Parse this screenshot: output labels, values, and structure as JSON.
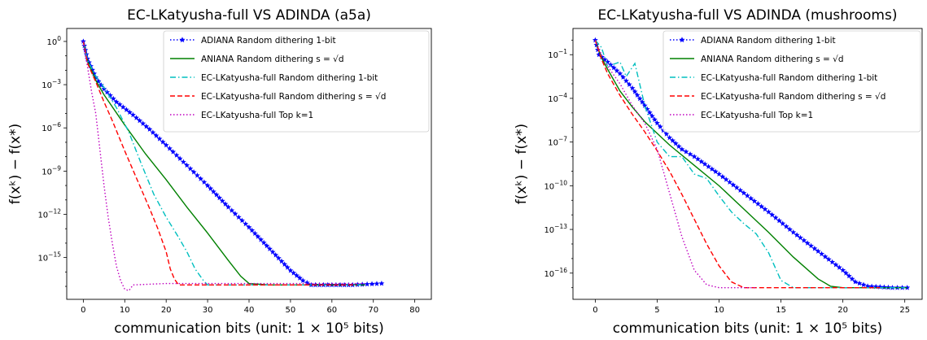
{
  "chart_data": [
    {
      "type": "line",
      "title": "EC-LKatyusha-full VS ADINDA (a5a)",
      "xlabel": "communication bits (unit: 1 × 10⁵ bits)",
      "ylabel": "f(xᵏ) − f(x*)",
      "xlim": [
        -4,
        84
      ],
      "ylim_log10": [
        -17.9,
        0.9
      ],
      "yscale": "log",
      "xticks": [
        0,
        10,
        20,
        30,
        40,
        50,
        60,
        70,
        80
      ],
      "xtick_labels": [
        "0",
        "10",
        "20",
        "30",
        "40",
        "50",
        "60",
        "70",
        "80"
      ],
      "yticks_log10": [
        0,
        -3,
        -6,
        -9,
        -12,
        -15
      ],
      "ytick_labels": [
        "10⁰",
        "10⁻³",
        "10⁻⁶",
        "10⁻⁹",
        "10⁻¹²",
        "10⁻¹⁵"
      ],
      "legend_position": "top-right",
      "series": [
        {
          "name": "ADIANA Random dithering 1-bit",
          "color": "#0000ff",
          "style": "dotted-star",
          "points": [
            [
              0,
              0
            ],
            [
              1,
              -1.2
            ],
            [
              3,
              -2.5
            ],
            [
              5,
              -3.3
            ],
            [
              8,
              -4.2
            ],
            [
              12,
              -5.1
            ],
            [
              16,
              -6.1
            ],
            [
              20,
              -7.2
            ],
            [
              25,
              -8.6
            ],
            [
              30,
              -10.0
            ],
            [
              35,
              -11.5
            ],
            [
              40,
              -12.9
            ],
            [
              45,
              -14.4
            ],
            [
              50,
              -15.9
            ],
            [
              53,
              -16.6
            ],
            [
              55,
              -16.9
            ],
            [
              60,
              -16.9
            ],
            [
              65,
              -16.9
            ],
            [
              72,
              -16.8
            ]
          ]
        },
        {
          "name": "ANIANA Random dithering s = √d",
          "color": "#008000",
          "style": "solid",
          "points": [
            [
              0,
              0
            ],
            [
              1,
              -1.3
            ],
            [
              3,
              -2.7
            ],
            [
              5,
              -3.7
            ],
            [
              10,
              -5.8
            ],
            [
              15,
              -7.8
            ],
            [
              20,
              -9.6
            ],
            [
              25,
              -11.5
            ],
            [
              30,
              -13.3
            ],
            [
              35,
              -15.2
            ],
            [
              38,
              -16.3
            ],
            [
              40,
              -16.8
            ],
            [
              45,
              -16.9
            ],
            [
              55,
              -16.9
            ],
            [
              64,
              -16.9
            ],
            [
              68,
              -16.9
            ]
          ]
        },
        {
          "name": "EC-LKatyusha-full Random dithering 1-bit",
          "color": "#00bfbf",
          "style": "dashdot",
          "points": [
            [
              0,
              0
            ],
            [
              1,
              -1.3
            ],
            [
              3,
              -2.4
            ],
            [
              5,
              -3.2
            ],
            [
              8,
              -4.6
            ],
            [
              11,
              -6.3
            ],
            [
              14,
              -8.5
            ],
            [
              17,
              -10.6
            ],
            [
              20,
              -12.2
            ],
            [
              23,
              -13.6
            ],
            [
              25,
              -14.6
            ],
            [
              27,
              -15.8
            ],
            [
              29,
              -16.6
            ],
            [
              30,
              -16.9
            ],
            [
              40,
              -16.9
            ],
            [
              50,
              -16.9
            ],
            [
              60,
              -16.9
            ],
            [
              67,
              -16.9
            ]
          ]
        },
        {
          "name": "EC-LKatyusha-full Random dithering s = √d",
          "color": "#ff0000",
          "style": "dashed",
          "points": [
            [
              0,
              0
            ],
            [
              1,
              -1.5
            ],
            [
              3,
              -2.8
            ],
            [
              5,
              -4.2
            ],
            [
              7,
              -5.5
            ],
            [
              10,
              -7.6
            ],
            [
              13,
              -9.6
            ],
            [
              16,
              -11.6
            ],
            [
              18,
              -13.0
            ],
            [
              20,
              -14.6
            ],
            [
              21,
              -15.8
            ],
            [
              22,
              -16.5
            ],
            [
              23,
              -16.9
            ],
            [
              30,
              -16.9
            ],
            [
              40,
              -16.9
            ],
            [
              50,
              -16.9
            ],
            [
              60,
              -16.9
            ],
            [
              66,
              -16.9
            ]
          ]
        },
        {
          "name": "EC-LKatyusha-full Top k=1",
          "color": "#bf00bf",
          "style": "dotted",
          "points": [
            [
              0,
              0
            ],
            [
              2,
              -3.5
            ],
            [
              3,
              -5.0
            ],
            [
              4,
              -7.5
            ],
            [
              5,
              -10.0
            ],
            [
              6,
              -12.2
            ],
            [
              7,
              -14.0
            ],
            [
              8,
              -15.6
            ],
            [
              9,
              -16.6
            ],
            [
              10,
              -17.2
            ],
            [
              11,
              -17.3
            ],
            [
              12,
              -16.9
            ],
            [
              20,
              -16.8
            ],
            [
              30,
              -16.8
            ],
            [
              40,
              -16.8
            ],
            [
              50,
              -16.8
            ],
            [
              60,
              -16.8
            ],
            [
              68,
              -16.8
            ]
          ]
        }
      ]
    },
    {
      "type": "line",
      "title": "EC-LKatyusha-full VS ADINDA (mushrooms)",
      "xlabel": "communication bits (unit: 1 × 10⁵ bits)",
      "ylabel": "f(xᵏ) − f(x*)",
      "xlim": [
        -1.8,
        26.4
      ],
      "ylim_log10": [
        -17.8,
        0.8
      ],
      "yscale": "log",
      "xticks": [
        0,
        5,
        10,
        15,
        20,
        25
      ],
      "xtick_labels": [
        "0",
        "5",
        "10",
        "15",
        "20",
        "25"
      ],
      "yticks_log10": [
        -1,
        -4,
        -7,
        -10,
        -13,
        -16
      ],
      "ytick_labels": [
        "10⁻¹",
        "10⁻⁴",
        "10⁻⁷",
        "10⁻¹⁰",
        "10⁻¹³",
        "10⁻¹⁶"
      ],
      "legend_position": "top-right",
      "series": [
        {
          "name": "ADIANA Random dithering 1-bit",
          "color": "#0000ff",
          "style": "dotted-star",
          "points": [
            [
              0,
              0
            ],
            [
              0.3,
              -1.0
            ],
            [
              1,
              -1.5
            ],
            [
              2,
              -2.3
            ],
            [
              3,
              -3.3
            ],
            [
              4,
              -4.5
            ],
            [
              5,
              -5.7
            ],
            [
              6,
              -6.7
            ],
            [
              7,
              -7.5
            ],
            [
              8,
              -8.0
            ],
            [
              10,
              -9.2
            ],
            [
              12,
              -10.5
            ],
            [
              14,
              -11.8
            ],
            [
              16,
              -13.2
            ],
            [
              18,
              -14.5
            ],
            [
              20,
              -15.8
            ],
            [
              21,
              -16.6
            ],
            [
              22,
              -16.9
            ],
            [
              24,
              -17.0
            ],
            [
              25.2,
              -17.0
            ]
          ]
        },
        {
          "name": "ANIANA Random dithering s = √d",
          "color": "#008000",
          "style": "solid",
          "points": [
            [
              0,
              0
            ],
            [
              0.5,
              -1.2
            ],
            [
              1,
              -2.0
            ],
            [
              2,
              -3.5
            ],
            [
              3,
              -4.6
            ],
            [
              4,
              -5.6
            ],
            [
              6,
              -7.2
            ],
            [
              8,
              -8.6
            ],
            [
              10,
              -10.0
            ],
            [
              12,
              -11.6
            ],
            [
              14,
              -13.2
            ],
            [
              16,
              -14.9
            ],
            [
              18,
              -16.4
            ],
            [
              19,
              -16.9
            ],
            [
              20,
              -17.0
            ],
            [
              22,
              -17.0
            ],
            [
              24,
              -17.0
            ],
            [
              25.2,
              -17.0
            ]
          ]
        },
        {
          "name": "EC-LKatyusha-full Random dithering 1-bit",
          "color": "#00bfbf",
          "style": "dashdot",
          "points": [
            [
              0,
              0
            ],
            [
              0.5,
              -0.5
            ],
            [
              1,
              -1.8
            ],
            [
              2,
              -1.5
            ],
            [
              2.5,
              -2.5
            ],
            [
              3.2,
              -1.6
            ],
            [
              4,
              -4.5
            ],
            [
              5,
              -7.0
            ],
            [
              6,
              -8.0
            ],
            [
              7,
              -8.0
            ],
            [
              8,
              -9.2
            ],
            [
              9,
              -9.5
            ],
            [
              10,
              -10.7
            ],
            [
              11,
              -11.8
            ],
            [
              12,
              -12.6
            ],
            [
              13,
              -13.3
            ],
            [
              14,
              -14.6
            ],
            [
              15,
              -16.5
            ],
            [
              16,
              -17.0
            ],
            [
              20,
              -17.0
            ],
            [
              25,
              -17.0
            ]
          ]
        },
        {
          "name": "EC-LKatyusha-full Random dithering s = √d",
          "color": "#ff0000",
          "style": "dashed",
          "points": [
            [
              0,
              0
            ],
            [
              0.5,
              -1.3
            ],
            [
              1,
              -2.3
            ],
            [
              2,
              -3.8
            ],
            [
              3,
              -5.1
            ],
            [
              4,
              -6.3
            ],
            [
              5,
              -7.6
            ],
            [
              6,
              -9.0
            ],
            [
              7,
              -10.6
            ],
            [
              8,
              -12.3
            ],
            [
              9,
              -14.0
            ],
            [
              10,
              -15.5
            ],
            [
              11,
              -16.6
            ],
            [
              12,
              -17.0
            ],
            [
              16,
              -17.0
            ],
            [
              20,
              -17.0
            ],
            [
              23,
              -17.0
            ]
          ]
        },
        {
          "name": "EC-LKatyusha-full Top k=1",
          "color": "#bf00bf",
          "style": "dotted",
          "points": [
            [
              0,
              0
            ],
            [
              0.5,
              -1.0
            ],
            [
              1,
              -1.8
            ],
            [
              2,
              -3.0
            ],
            [
              3,
              -4.5
            ],
            [
              4,
              -5.7
            ],
            [
              5,
              -7.5
            ],
            [
              6,
              -10.5
            ],
            [
              7,
              -13.5
            ],
            [
              8,
              -15.8
            ],
            [
              9,
              -16.8
            ],
            [
              10,
              -17.0
            ],
            [
              12,
              -17.0
            ],
            [
              13,
              -17.0
            ]
          ]
        }
      ]
    }
  ]
}
